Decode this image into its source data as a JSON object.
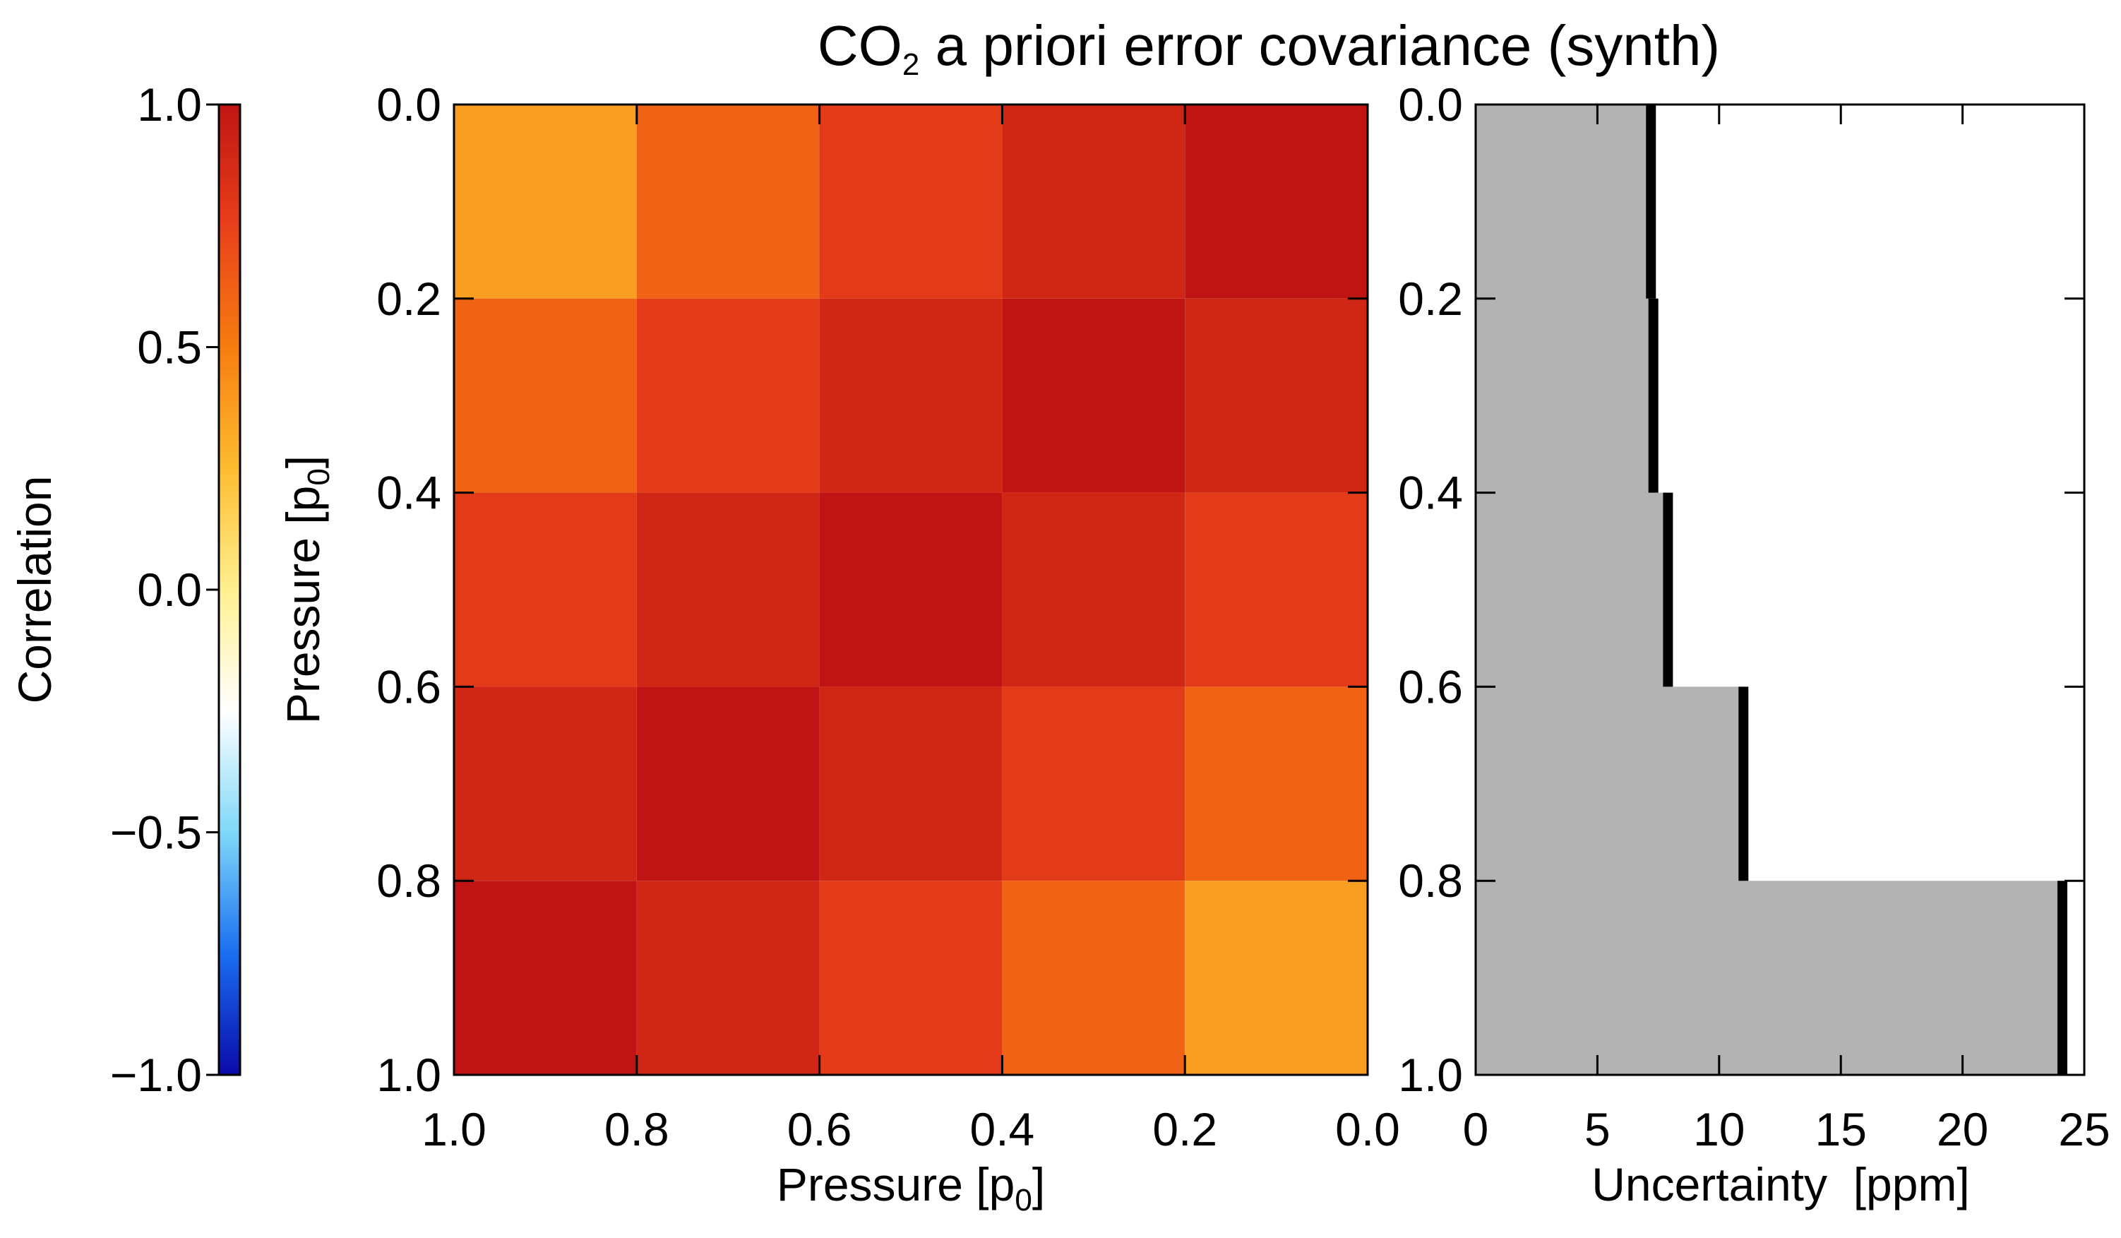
{
  "chart_data": [
    {
      "type": "heatmap",
      "title_main": "CO",
      "title_sub": "2",
      "title_rest": " a priori error covariance (synth)",
      "xlabel_main": "Pressure [p",
      "xlabel_sub": "0",
      "xlabel_end": "]",
      "ylabel_main": "Pressure [p",
      "ylabel_sub": "0",
      "ylabel_end": "]",
      "xlim": [
        1.0,
        0.0
      ],
      "ylim": [
        0.0,
        1.0
      ],
      "x_ticks": [
        "1.0",
        "0.8",
        "0.6",
        "0.4",
        "0.2",
        "0.0"
      ],
      "y_ticks": [
        "0.0",
        "0.2",
        "0.4",
        "0.6",
        "0.8",
        "1.0"
      ],
      "x_ticks_values": [
        1.0,
        0.8,
        0.6,
        0.4,
        0.2,
        0.0
      ],
      "y_ticks_values": [
        0.0,
        0.2,
        0.4,
        0.6,
        0.8,
        1.0
      ],
      "layer_edges": [
        0.0,
        0.2,
        0.4,
        0.6,
        0.8,
        1.0
      ],
      "values": [
        [
          0.37,
          0.61,
          0.78,
          0.9,
          1.0
        ],
        [
          0.61,
          0.78,
          0.9,
          1.0,
          0.9
        ],
        [
          0.78,
          0.9,
          1.0,
          0.9,
          0.78
        ],
        [
          0.9,
          1.0,
          0.9,
          0.78,
          0.61
        ],
        [
          1.0,
          0.9,
          0.78,
          0.61,
          0.37
        ]
      ]
    },
    {
      "type": "colorbar",
      "label": "Correlation",
      "range": [
        -1.0,
        1.0
      ],
      "ticks": [
        "1.0",
        "0.5",
        "0.0",
        "−0.5",
        "−1.0"
      ],
      "ticks_values": [
        1.0,
        0.5,
        0.0,
        -0.5,
        -1.0
      ],
      "colors": [
        "#0a0aa8",
        "#1a6ef0",
        "#7fd8f8",
        "#ffffff",
        "#fff090",
        "#fdbc30",
        "#f77d10",
        "#e8401a",
        "#c01414"
      ]
    },
    {
      "type": "area",
      "xlabel": "Uncertainty  [ppm]",
      "xlim": [
        0,
        25
      ],
      "ylim": [
        0.0,
        1.0
      ],
      "x_ticks": [
        "0",
        "5",
        "10",
        "15",
        "20",
        "25"
      ],
      "x_ticks_values": [
        0,
        5,
        10,
        15,
        20,
        25
      ],
      "y_ticks": [
        "0.0",
        "0.2",
        "0.4",
        "0.6",
        "0.8",
        "1.0"
      ],
      "y_ticks_values": [
        0.0,
        0.2,
        0.4,
        0.6,
        0.8,
        1.0
      ],
      "layers": [
        {
          "p_top": 0.0,
          "p_bottom": 0.2,
          "value": 7.2
        },
        {
          "p_top": 0.2,
          "p_bottom": 0.4,
          "value": 7.3
        },
        {
          "p_top": 0.4,
          "p_bottom": 0.6,
          "value": 7.9
        },
        {
          "p_top": 0.6,
          "p_bottom": 0.8,
          "value": 11.0
        },
        {
          "p_top": 0.8,
          "p_bottom": 1.0,
          "value": 24.1
        }
      ],
      "fill_color": "#b3b3b3",
      "line_color": "#000000"
    }
  ]
}
